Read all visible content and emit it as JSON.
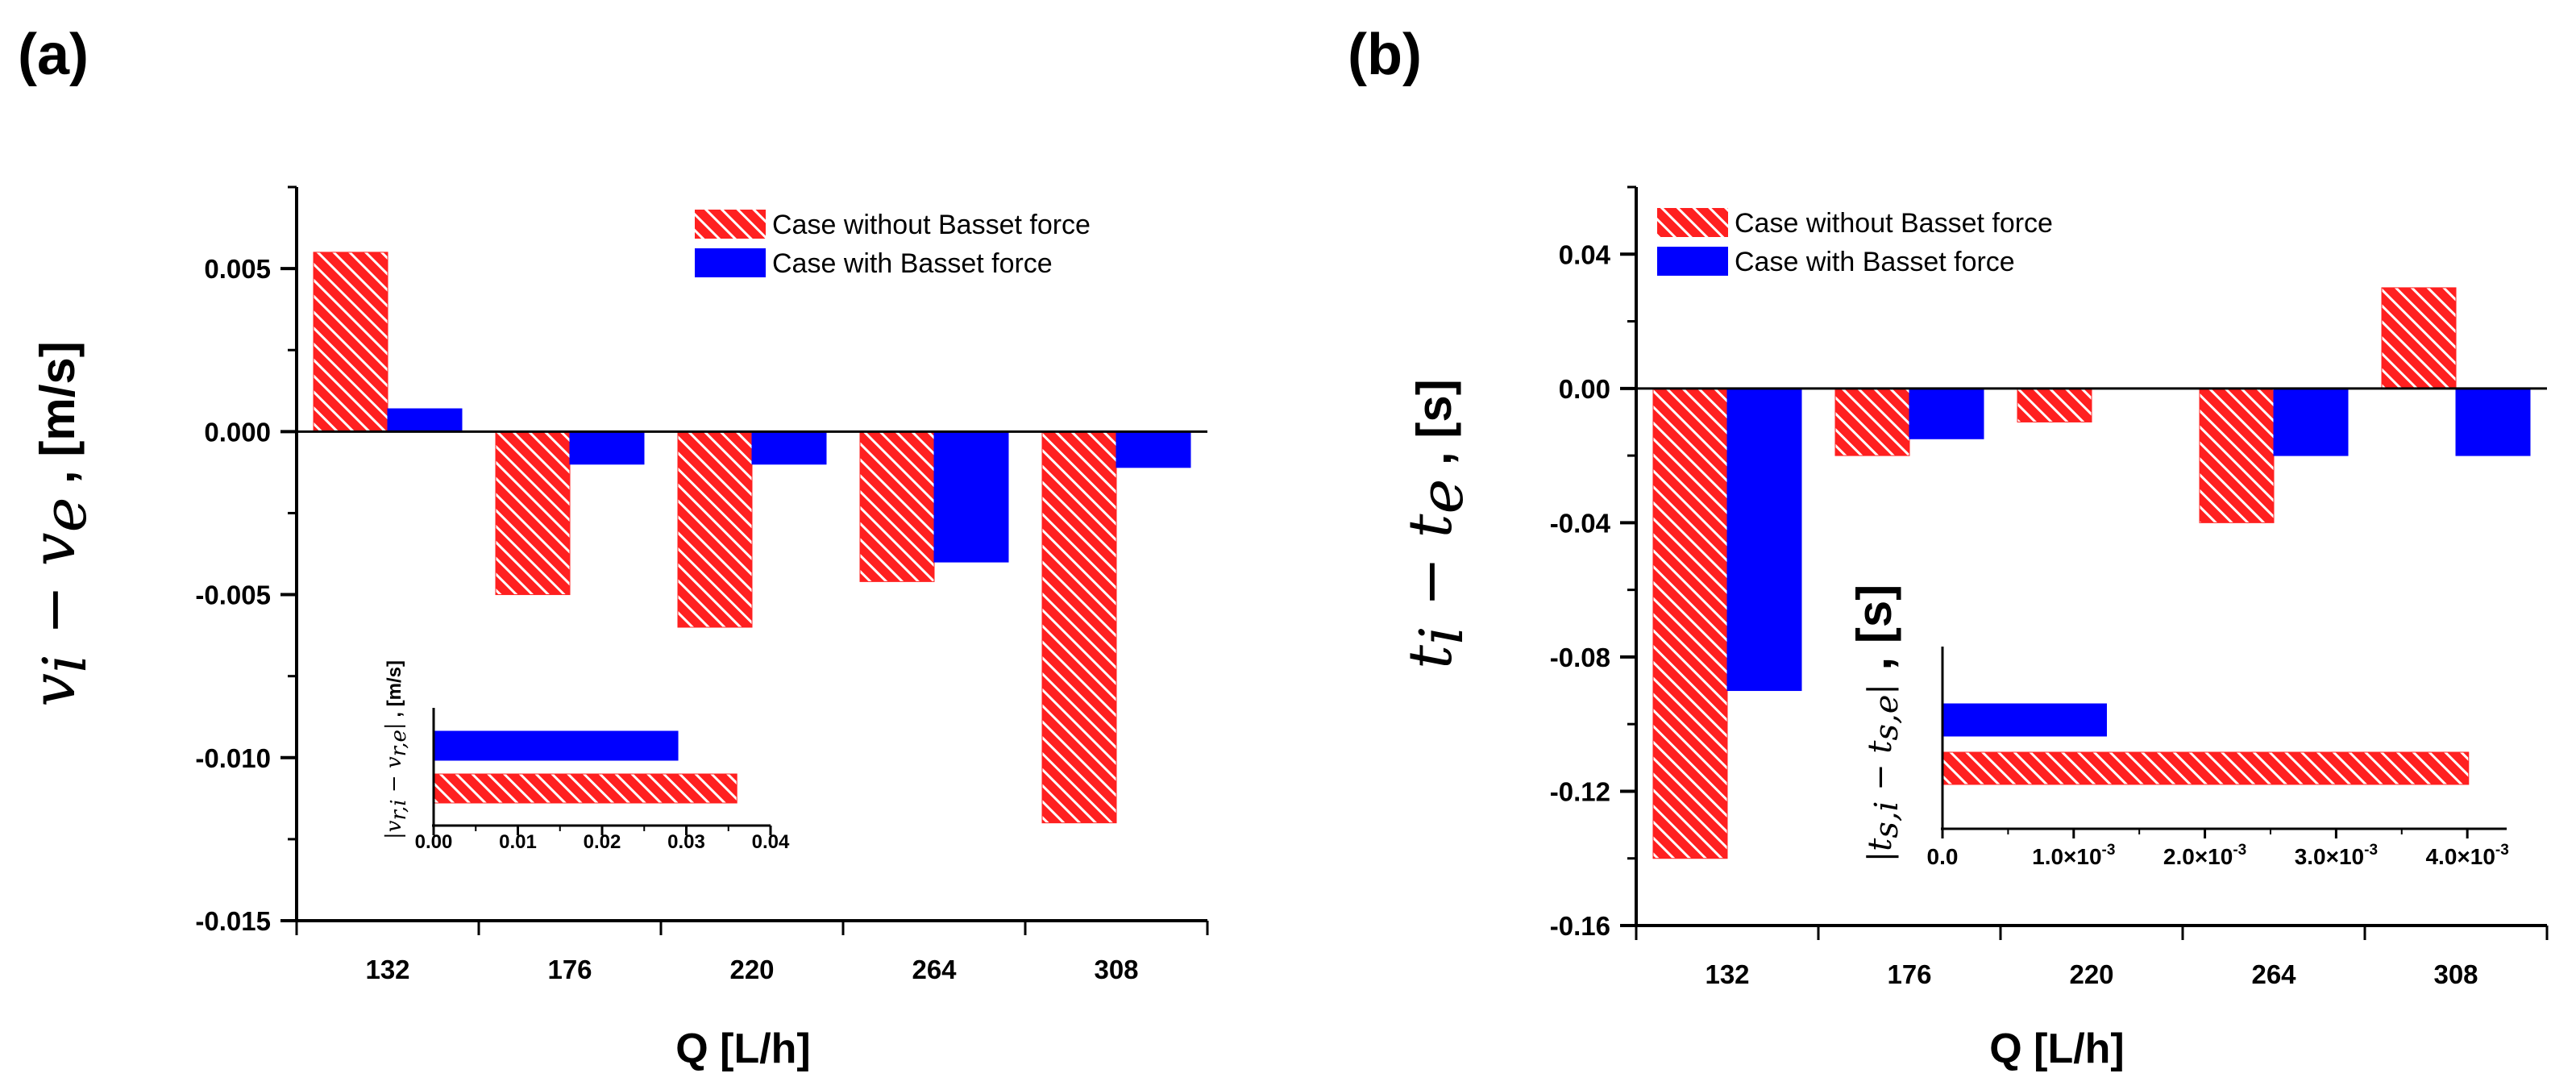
{
  "colors": {
    "without": "#ff2020",
    "with": "#0000ff",
    "hatch": "#ffffff",
    "axis": "#000000"
  },
  "chart_data": [
    {
      "panel": "(a)",
      "type": "bar",
      "xlabel": "Q [L/h]",
      "ylabel": {
        "math": "v",
        "sub1": "i",
        "minus": " − ",
        "sub2": "e",
        "unit": " , [m/s]"
      },
      "categories": [
        "132",
        "176",
        "220",
        "264",
        "308"
      ],
      "ylim": [
        -0.015,
        0.0075
      ],
      "yticks": [
        {
          "value": 0.005,
          "label": "0.005"
        },
        {
          "value": 0.0,
          "label": "0.000"
        },
        {
          "value": -0.005,
          "label": "-0.005"
        },
        {
          "value": -0.01,
          "label": "-0.010"
        },
        {
          "value": -0.015,
          "label": "-0.015"
        }
      ],
      "legend_position": "top-right",
      "series": [
        {
          "name": "Case without Basset force",
          "key": "without",
          "values": [
            0.0055,
            -0.005,
            -0.006,
            -0.0046,
            -0.012
          ]
        },
        {
          "name": "Case with Basset force",
          "key": "with",
          "values": [
            0.0007,
            -0.001,
            -0.001,
            -0.004,
            -0.0011
          ]
        }
      ],
      "inset": {
        "type": "bar-horizontal",
        "ylabel": {
          "open": "|",
          "var": "v",
          "sub1": "r,i",
          "minus": " − ",
          "sub2": "r,e",
          "close": "|",
          "unit": " , [m/s]"
        },
        "xlim": [
          0,
          0.04
        ],
        "xticks": [
          {
            "value": 0.0,
            "label": "0.00"
          },
          {
            "value": 0.01,
            "label": "0.01"
          },
          {
            "value": 0.02,
            "label": "0.02"
          },
          {
            "value": 0.03,
            "label": "0.03"
          },
          {
            "value": 0.04,
            "label": "0.04"
          }
        ],
        "series": [
          {
            "name": "Case with Basset force",
            "key": "with",
            "value": 0.029
          },
          {
            "name": "Case without Basset force",
            "key": "without",
            "value": 0.036
          }
        ]
      }
    },
    {
      "panel": "(b)",
      "type": "bar",
      "xlabel": "Q [L/h]",
      "ylabel": {
        "math": "t",
        "sub1": "i",
        "minus": " − ",
        "sub2": "e",
        "unit": " , [s]"
      },
      "categories": [
        "132",
        "176",
        "220",
        "264",
        "308"
      ],
      "ylim": [
        -0.16,
        0.06
      ],
      "yticks": [
        {
          "value": 0.04,
          "label": "0.04"
        },
        {
          "value": 0.0,
          "label": "0.00"
        },
        {
          "value": -0.04,
          "label": "-0.04"
        },
        {
          "value": -0.08,
          "label": "-0.08"
        },
        {
          "value": -0.12,
          "label": "-0.12"
        },
        {
          "value": -0.16,
          "label": "-0.16"
        }
      ],
      "legend_position": "top-left",
      "series": [
        {
          "name": "Case without Basset force",
          "key": "without",
          "values": [
            -0.14,
            -0.02,
            -0.01,
            -0.04,
            0.03
          ]
        },
        {
          "name": "Case with Basset force",
          "key": "with",
          "values": [
            -0.09,
            -0.015,
            0.0,
            -0.02,
            -0.02
          ]
        }
      ],
      "inset": {
        "type": "bar-horizontal",
        "ylabel": {
          "open": "|",
          "var": "t",
          "sub1": "s,i",
          "minus": " − ",
          "sub2": "s,e",
          "close": "|",
          "unit": " , [s]"
        },
        "xlim": [
          0,
          0.0043
        ],
        "xticks": [
          {
            "value": 0.0,
            "label": "0.0",
            "exp": ""
          },
          {
            "value": 0.001,
            "label": "1.0×10",
            "exp": "-3"
          },
          {
            "value": 0.002,
            "label": "2.0×10",
            "exp": "-3"
          },
          {
            "value": 0.003,
            "label": "3.0×10",
            "exp": "-3"
          },
          {
            "value": 0.004,
            "label": "4.0×10",
            "exp": "-3"
          }
        ],
        "series": [
          {
            "name": "Case with Basset force",
            "key": "with",
            "value": 0.00125
          },
          {
            "name": "Case without Basset force",
            "key": "without",
            "value": 0.00401
          }
        ]
      }
    }
  ]
}
